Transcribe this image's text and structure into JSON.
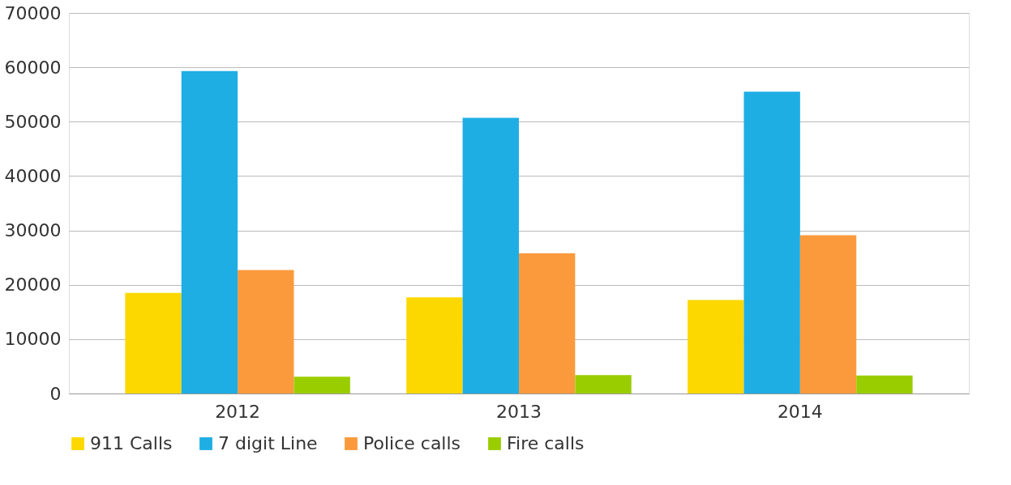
{
  "chart_data": {
    "type": "bar",
    "categories": [
      "2012",
      "2013",
      "2014"
    ],
    "series": [
      {
        "name": "911 Calls",
        "color": "#fcd800",
        "values": [
          18500,
          17700,
          17200
        ]
      },
      {
        "name": "7 digit Line",
        "color": "#1eaee4",
        "values": [
          59300,
          50700,
          55500
        ]
      },
      {
        "name": "Police calls",
        "color": "#fb9a3c",
        "values": [
          22700,
          25800,
          29100
        ]
      },
      {
        "name": "Fire calls",
        "color": "#9acd00",
        "values": [
          3100,
          3400,
          3300
        ]
      }
    ],
    "ylim": [
      0,
      70000
    ],
    "yticks": [
      0,
      10000,
      20000,
      30000,
      40000,
      50000,
      60000,
      70000
    ],
    "grid": "y",
    "legend": "bottom"
  }
}
